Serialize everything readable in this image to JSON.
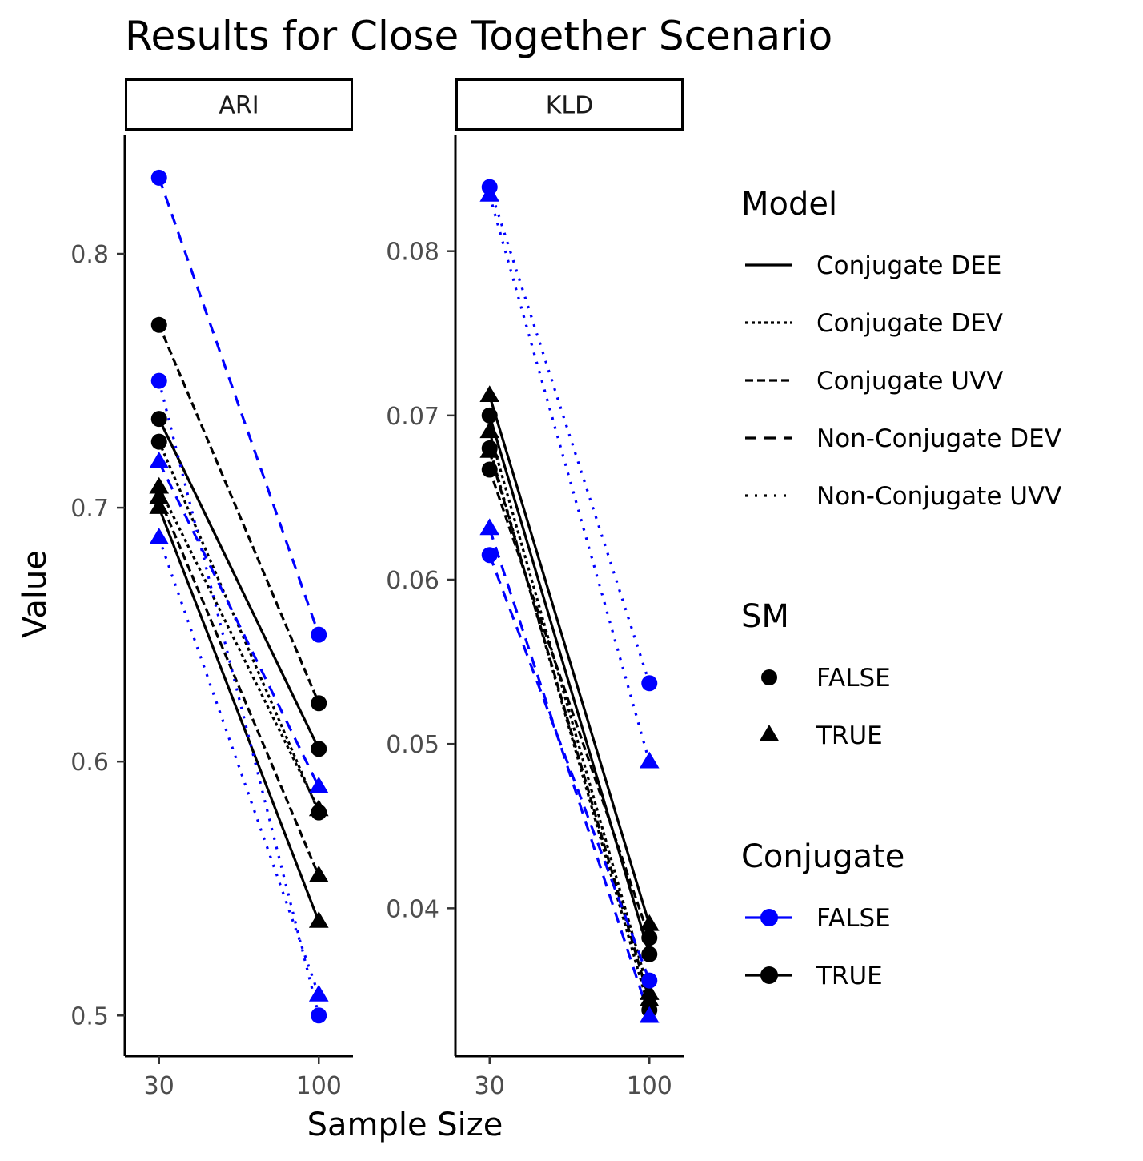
{
  "chart_data": {
    "type": "line",
    "title": "Results for Close Together Scenario",
    "xlabel": "Sample Size",
    "ylabel": "Value",
    "x": [
      30,
      100
    ],
    "x_tick_labels": [
      "30",
      "100"
    ],
    "colors": {
      "FALSE": "#0000ff",
      "TRUE": "#000000"
    },
    "panels": [
      {
        "name": "ARI",
        "ylim": [
          0.484,
          0.847
        ],
        "y_ticks": [
          0.5,
          0.6,
          0.7,
          0.8
        ],
        "y_tick_labels": [
          "0.5",
          "0.6",
          "0.7",
          "0.8"
        ],
        "series": [
          {
            "model": "Conjugate DEE",
            "sm": "FALSE",
            "conjugate": "TRUE",
            "values": [
              0.735,
              0.605
            ]
          },
          {
            "model": "Conjugate DEE",
            "sm": "TRUE",
            "conjugate": "TRUE",
            "values": [
              0.7,
              0.537
            ]
          },
          {
            "model": "Conjugate DEV",
            "sm": "FALSE",
            "conjugate": "TRUE",
            "values": [
              0.726,
              0.58
            ]
          },
          {
            "model": "Conjugate DEV",
            "sm": "TRUE",
            "conjugate": "TRUE",
            "values": [
              0.708,
              0.581
            ]
          },
          {
            "model": "Conjugate UVV",
            "sm": "FALSE",
            "conjugate": "TRUE",
            "values": [
              0.772,
              0.623
            ]
          },
          {
            "model": "Conjugate UVV",
            "sm": "TRUE",
            "conjugate": "TRUE",
            "values": [
              0.704,
              0.555
            ]
          },
          {
            "model": "Non-Conjugate DEV",
            "sm": "FALSE",
            "conjugate": "FALSE",
            "values": [
              0.83,
              0.65
            ]
          },
          {
            "model": "Non-Conjugate DEV",
            "sm": "TRUE",
            "conjugate": "FALSE",
            "values": [
              0.718,
              0.59
            ]
          },
          {
            "model": "Non-Conjugate UVV",
            "sm": "FALSE",
            "conjugate": "FALSE",
            "values": [
              0.75,
              0.5
            ]
          },
          {
            "model": "Non-Conjugate UVV",
            "sm": "TRUE",
            "conjugate": "FALSE",
            "values": [
              0.688,
              0.508
            ]
          }
        ]
      },
      {
        "name": "KLD",
        "ylim": [
          0.031,
          0.0871
        ],
        "y_ticks": [
          0.04,
          0.05,
          0.06,
          0.07,
          0.08
        ],
        "y_tick_labels": [
          "0.04",
          "0.05",
          "0.06",
          "0.07",
          "0.08"
        ],
        "series": [
          {
            "model": "Conjugate DEE",
            "sm": "FALSE",
            "conjugate": "TRUE",
            "values": [
              0.07,
              0.0372
            ]
          },
          {
            "model": "Conjugate DEE",
            "sm": "TRUE",
            "conjugate": "TRUE",
            "values": [
              0.0712,
              0.039
            ]
          },
          {
            "model": "Conjugate DEV",
            "sm": "FALSE",
            "conjugate": "TRUE",
            "values": [
              0.068,
              0.0338
            ]
          },
          {
            "model": "Conjugate DEV",
            "sm": "TRUE",
            "conjugate": "TRUE",
            "values": [
              0.069,
              0.0348
            ]
          },
          {
            "model": "Conjugate UVV",
            "sm": "FALSE",
            "conjugate": "TRUE",
            "values": [
              0.0667,
              0.0382
            ]
          },
          {
            "model": "Conjugate UVV",
            "sm": "TRUE",
            "conjugate": "TRUE",
            "values": [
              0.0678,
              0.0344
            ]
          },
          {
            "model": "Non-Conjugate DEV",
            "sm": "FALSE",
            "conjugate": "FALSE",
            "values": [
              0.0615,
              0.0356
            ]
          },
          {
            "model": "Non-Conjugate DEV",
            "sm": "TRUE",
            "conjugate": "FALSE",
            "values": [
              0.0631,
              0.0334
            ]
          },
          {
            "model": "Non-Conjugate UVV",
            "sm": "FALSE",
            "conjugate": "FALSE",
            "values": [
              0.0839,
              0.0537
            ]
          },
          {
            "model": "Non-Conjugate UVV",
            "sm": "TRUE",
            "conjugate": "FALSE",
            "values": [
              0.0834,
              0.0489
            ]
          }
        ]
      }
    ],
    "legend": {
      "position": "right",
      "groups": [
        {
          "title": "Model",
          "kind": "linetype",
          "entries": [
            "Conjugate DEE",
            "Conjugate DEV",
            "Conjugate UVV",
            "Non-Conjugate DEV",
            "Non-Conjugate UVV"
          ]
        },
        {
          "title": "SM",
          "kind": "shape",
          "entries": [
            "FALSE",
            "TRUE"
          ]
        },
        {
          "title": "Conjugate",
          "kind": "color",
          "entries": [
            "FALSE",
            "TRUE"
          ]
        }
      ]
    },
    "grid": false
  }
}
